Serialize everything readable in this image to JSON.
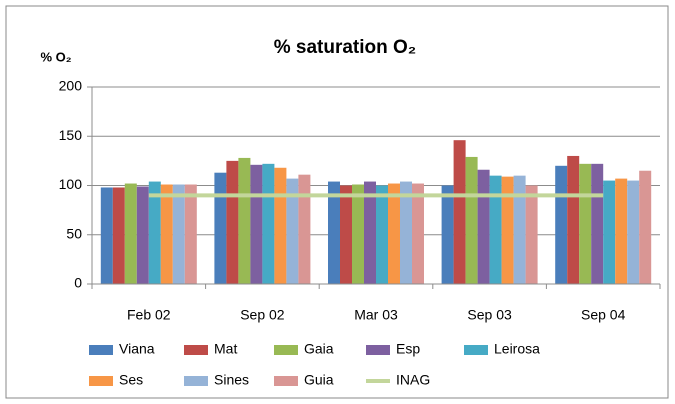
{
  "chart_data": {
    "type": "bar",
    "title": "% saturation O₂",
    "y_label": "% O₂",
    "categories": [
      "Feb 02",
      "Sep 02",
      "Mar 03",
      "Sep 03",
      "Sep 04"
    ],
    "series": [
      {
        "name": "Viana",
        "color": "#4a7ebb",
        "values": [
          98,
          113,
          104,
          100,
          120
        ]
      },
      {
        "name": "Mat",
        "color": "#be4b48",
        "values": [
          98,
          125,
          100,
          146,
          130
        ]
      },
      {
        "name": "Gaia",
        "color": "#98b954",
        "values": [
          102,
          128,
          101,
          129,
          122
        ]
      },
      {
        "name": "Esp",
        "color": "#7d60a0",
        "values": [
          99,
          121,
          104,
          116,
          122
        ]
      },
      {
        "name": "Leirosa",
        "color": "#46aac5",
        "values": [
          104,
          122,
          100,
          110,
          105
        ]
      },
      {
        "name": "Ses",
        "color": "#f79646",
        "values": [
          101,
          118,
          102,
          109,
          107
        ]
      },
      {
        "name": "Sines",
        "color": "#95b3d7",
        "values": [
          101,
          107,
          104,
          110,
          105
        ]
      },
      {
        "name": "Guia",
        "color": "#d99694",
        "values": [
          101,
          111,
          102,
          100,
          115
        ]
      },
      {
        "name": "INAG",
        "color": "#c3d69b",
        "type": "line",
        "values": [
          90,
          90,
          90,
          90,
          90
        ]
      }
    ],
    "ylim": [
      0,
      200
    ],
    "yticks": [
      0,
      50,
      100,
      150,
      200
    ],
    "grid": true
  }
}
